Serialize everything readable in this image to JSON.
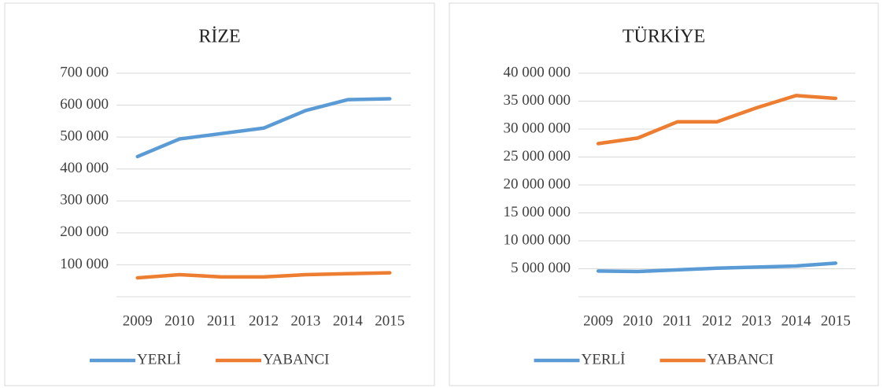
{
  "chart_data": [
    {
      "type": "line",
      "title": "RİZE",
      "categories": [
        "2009",
        "2010",
        "2011",
        "2012",
        "2013",
        "2014",
        "2015"
      ],
      "series": [
        {
          "name": "YERLİ",
          "color": "#5b9bd5",
          "values": [
            439000,
            494000,
            511000,
            528000,
            583000,
            617000,
            620000
          ]
        },
        {
          "name": "YABANCI",
          "color": "#ed7d31",
          "values": [
            59000,
            69000,
            62000,
            62000,
            69000,
            72000,
            75000
          ]
        }
      ],
      "ylim": [
        0,
        700000
      ],
      "yticks": [
        {
          "value": 100000,
          "label": "100 000"
        },
        {
          "value": 200000,
          "label": "200 000"
        },
        {
          "value": 300000,
          "label": "300 000"
        },
        {
          "value": 400000,
          "label": "400 000"
        },
        {
          "value": 500000,
          "label": "500 000"
        },
        {
          "value": 600000,
          "label": "600 000"
        },
        {
          "value": 700000,
          "label": "700 000"
        }
      ],
      "grid": true,
      "legend": "bottom"
    },
    {
      "type": "line",
      "title": "TÜRKİYE",
      "categories": [
        "2009",
        "2010",
        "2011",
        "2012",
        "2013",
        "2014",
        "2015"
      ],
      "series": [
        {
          "name": "YERLİ",
          "color": "#5b9bd5",
          "values": [
            4600000,
            4500000,
            4800000,
            5100000,
            5300000,
            5500000,
            6000000
          ]
        },
        {
          "name": "YABANCI",
          "color": "#ed7d31",
          "values": [
            27400000,
            28400000,
            31300000,
            31300000,
            33800000,
            36000000,
            35500000
          ]
        }
      ],
      "ylim": [
        0,
        40000000
      ],
      "yticks": [
        {
          "value": 5000000,
          "label": "5 000 000"
        },
        {
          "value": 10000000,
          "label": "10 000 000"
        },
        {
          "value": 15000000,
          "label": "15 000 000"
        },
        {
          "value": 20000000,
          "label": "20 000 000"
        },
        {
          "value": 25000000,
          "label": "25 000 000"
        },
        {
          "value": 30000000,
          "label": "30 000 000"
        },
        {
          "value": 35000000,
          "label": "35 000 000"
        },
        {
          "value": 40000000,
          "label": "40 000 000"
        }
      ],
      "grid": true,
      "legend": "bottom"
    }
  ]
}
